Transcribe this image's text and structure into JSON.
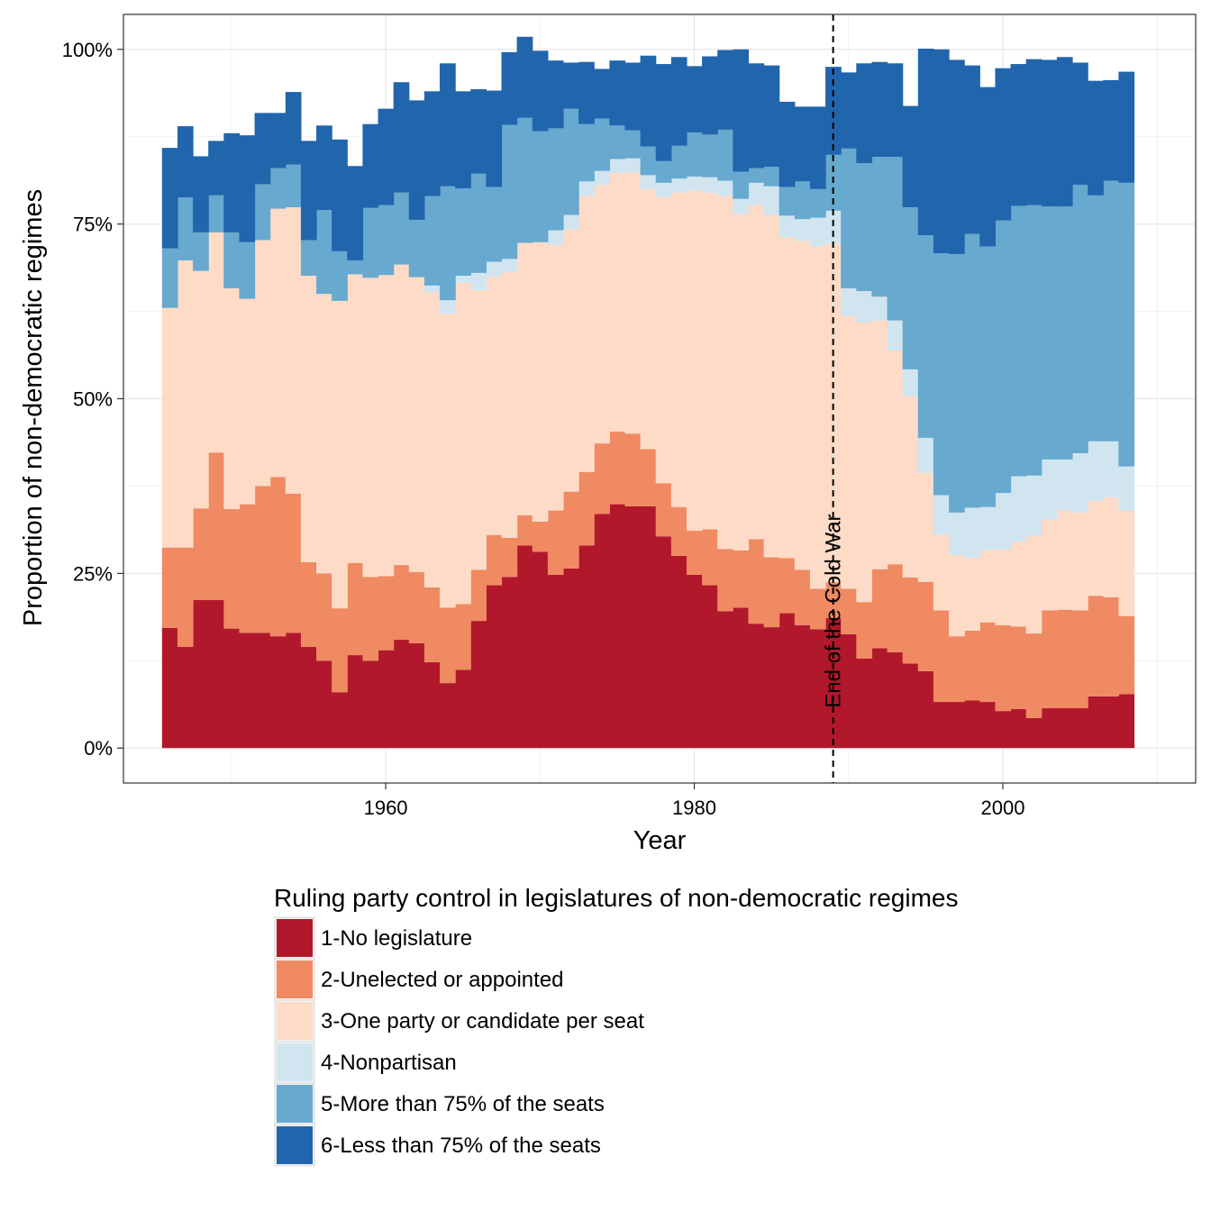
{
  "chart_data": {
    "type": "area",
    "title": "",
    "xlabel": "Year",
    "ylabel": "Proportion of non-democratic regimes",
    "xlim": [
      1943,
      2012.5
    ],
    "ylim": [
      -0.05,
      1.05
    ],
    "x_ticks": [
      1960,
      1980,
      2000
    ],
    "x_tick_labels": [
      "1960",
      "1980",
      "2000"
    ],
    "y_ticks": [
      0,
      0.25,
      0.5,
      0.75,
      1
    ],
    "y_tick_labels": [
      "0%",
      "25%",
      "50%",
      "75%",
      "100%"
    ],
    "grid": true,
    "legend": {
      "title": "Ruling party control in legislatures of non-democratic regimes",
      "position": "bottom"
    },
    "annotation": {
      "text": "End of the Cold War",
      "x": 1989,
      "style": "dashed-vertical-line"
    },
    "x": [
      1946,
      1947,
      1948,
      1949,
      1950,
      1951,
      1952,
      1953,
      1954,
      1955,
      1956,
      1957,
      1958,
      1959,
      1960,
      1961,
      1962,
      1963,
      1964,
      1965,
      1966,
      1967,
      1968,
      1969,
      1970,
      1971,
      1972,
      1973,
      1974,
      1975,
      1976,
      1977,
      1978,
      1979,
      1980,
      1981,
      1982,
      1983,
      1984,
      1985,
      1986,
      1987,
      1988,
      1989,
      1990,
      1991,
      1992,
      1993,
      1994,
      1995,
      1996,
      1997,
      1998,
      1999,
      2000,
      2001,
      2002,
      2003,
      2004,
      2005,
      2006,
      2007,
      2008
    ],
    "series": [
      {
        "name": "1-No legislature",
        "color": "#b2182b",
        "values": [
          0.172,
          0.145,
          0.212,
          0.212,
          0.171,
          0.165,
          0.165,
          0.16,
          0.165,
          0.145,
          0.125,
          0.08,
          0.133,
          0.125,
          0.14,
          0.155,
          0.15,
          0.123,
          0.093,
          0.112,
          0.182,
          0.233,
          0.245,
          0.29,
          0.281,
          0.248,
          0.257,
          0.29,
          0.335,
          0.349,
          0.346,
          0.346,
          0.303,
          0.275,
          0.248,
          0.233,
          0.196,
          0.201,
          0.178,
          0.173,
          0.193,
          0.176,
          0.17,
          0.186,
          0.163,
          0.128,
          0.143,
          0.137,
          0.121,
          0.11,
          0.066,
          0.066,
          0.068,
          0.066,
          0.053,
          0.056,
          0.043,
          0.057,
          0.057,
          0.057,
          0.074,
          0.074,
          0.077
        ],
        "_note": ""
      },
      {
        "name": "2-Unelected or appointed",
        "color": "#ef8a62",
        "values": [
          0.115,
          0.142,
          0.131,
          0.211,
          0.171,
          0.184,
          0.21,
          0.228,
          0.199,
          0.121,
          0.125,
          0.12,
          0.132,
          0.12,
          0.106,
          0.107,
          0.102,
          0.107,
          0.108,
          0.094,
          0.073,
          0.072,
          0.056,
          0.043,
          0.043,
          0.092,
          0.11,
          0.105,
          0.101,
          0.104,
          0.104,
          0.082,
          0.076,
          0.07,
          0.063,
          0.08,
          0.089,
          0.082,
          0.121,
          0.1,
          0.079,
          0.079,
          0.058,
          0.051,
          0.065,
          0.081,
          0.113,
          0.126,
          0.123,
          0.128,
          0.131,
          0.094,
          0.1,
          0.114,
          0.123,
          0.118,
          0.121,
          0.14,
          0.141,
          0.14,
          0.144,
          0.142,
          0.112
        ]
      },
      {
        "name": "3-One party or candidate per seat",
        "color": "#fddbc7",
        "values": [
          0.343,
          0.411,
          0.34,
          0.315,
          0.316,
          0.294,
          0.352,
          0.384,
          0.41,
          0.41,
          0.4,
          0.44,
          0.413,
          0.428,
          0.431,
          0.43,
          0.422,
          0.422,
          0.42,
          0.46,
          0.4,
          0.37,
          0.38,
          0.39,
          0.4,
          0.38,
          0.375,
          0.395,
          0.37,
          0.37,
          0.374,
          0.372,
          0.41,
          0.45,
          0.487,
          0.482,
          0.505,
          0.481,
          0.478,
          0.49,
          0.459,
          0.471,
          0.49,
          0.485,
          0.39,
          0.4,
          0.356,
          0.306,
          0.259,
          0.156,
          0.108,
          0.116,
          0.104,
          0.103,
          0.108,
          0.121,
          0.14,
          0.13,
          0.142,
          0.14,
          0.136,
          0.143,
          0.151
        ]
      },
      {
        "name": "4-Nonpartisan",
        "color": "#d1e5f0",
        "values": [
          0,
          0,
          0,
          0,
          0,
          0,
          0,
          0,
          0,
          0,
          0,
          0,
          0,
          0,
          0,
          0,
          0,
          0.01,
          0.02,
          0.01,
          0.025,
          0.021,
          0.019,
          0,
          0,
          0.021,
          0.021,
          0.021,
          0.02,
          0.02,
          0.02,
          0.02,
          0.02,
          0.02,
          0.02,
          0.022,
          0.022,
          0.022,
          0.032,
          0.041,
          0.031,
          0.031,
          0.041,
          0.047,
          0.04,
          0.045,
          0.034,
          0.043,
          0.039,
          0.05,
          0.057,
          0.061,
          0.072,
          0.062,
          0.081,
          0.094,
          0.086,
          0.086,
          0.073,
          0.085,
          0.085,
          0.08,
          0.063
        ]
      },
      {
        "name": "5-More than 75% of the seats",
        "color": "#67a9cf",
        "values": [
          0.085,
          0.09,
          0.055,
          0.053,
          0.08,
          0.081,
          0.08,
          0.058,
          0.061,
          0.051,
          0.12,
          0.071,
          0.02,
          0.1,
          0.1,
          0.103,
          0.082,
          0.128,
          0.163,
          0.125,
          0.142,
          0.107,
          0.192,
          0.179,
          0.159,
          0.146,
          0.152,
          0.082,
          0.075,
          0.048,
          0.04,
          0.041,
          0.031,
          0.047,
          0.063,
          0.061,
          0.073,
          0.039,
          0.021,
          0.028,
          0.041,
          0.054,
          0.041,
          0.08,
          0.2,
          0.183,
          0.2,
          0.234,
          0.232,
          0.29,
          0.346,
          0.37,
          0.392,
          0.373,
          0.39,
          0.387,
          0.387,
          0.362,
          0.362,
          0.384,
          0.352,
          0.373,
          0.406
        ]
      },
      {
        "name": "6-Less than 75% of the seats",
        "color": "#2166ac",
        "values": [
          0.144,
          0.102,
          0.109,
          0.078,
          0.142,
          0.153,
          0.102,
          0.079,
          0.104,
          0.142,
          0.121,
          0.16,
          0.135,
          0.12,
          0.138,
          0.158,
          0.171,
          0.15,
          0.176,
          0.139,
          0.121,
          0.138,
          0.104,
          0.116,
          0.115,
          0.097,
          0.066,
          0.089,
          0.071,
          0.093,
          0.097,
          0.13,
          0.139,
          0.127,
          0.095,
          0.112,
          0.114,
          0.175,
          0.15,
          0.145,
          0.122,
          0.107,
          0.118,
          0.126,
          0.109,
          0.143,
          0.136,
          0.134,
          0.145,
          0.267,
          0.292,
          0.278,
          0.241,
          0.228,
          0.218,
          0.203,
          0.209,
          0.21,
          0.214,
          0.175,
          0.164,
          0.144,
          0.159
        ]
      }
    ]
  }
}
